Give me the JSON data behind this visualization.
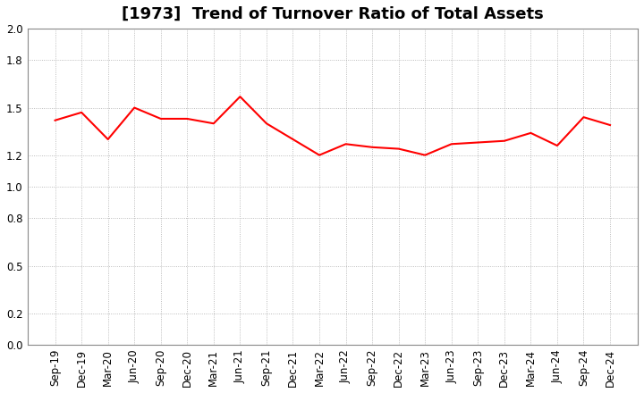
{
  "title": "[1973]  Trend of Turnover Ratio of Total Assets",
  "x_labels": [
    "Sep-19",
    "Dec-19",
    "Mar-20",
    "Jun-20",
    "Sep-20",
    "Dec-20",
    "Mar-21",
    "Jun-21",
    "Sep-21",
    "Dec-21",
    "Mar-22",
    "Jun-22",
    "Sep-22",
    "Dec-22",
    "Mar-23",
    "Jun-23",
    "Sep-23",
    "Dec-23",
    "Mar-24",
    "Jun-24",
    "Sep-24",
    "Dec-24"
  ],
  "y_values": [
    1.42,
    1.47,
    1.3,
    1.5,
    1.43,
    1.43,
    1.4,
    1.57,
    1.4,
    1.3,
    1.2,
    1.27,
    1.25,
    1.24,
    1.2,
    1.27,
    1.28,
    1.29,
    1.34,
    1.26,
    1.44,
    1.39
  ],
  "line_color": "#FF0000",
  "line_width": 1.5,
  "ylim": [
    0.0,
    2.0
  ],
  "yticks": [
    0.0,
    0.2,
    0.5,
    0.8,
    1.0,
    1.2,
    1.5,
    1.8,
    2.0
  ],
  "bg_color": "#FFFFFF",
  "plot_bg_color": "#FFFFFF",
  "grid_color": "#AAAAAA",
  "title_fontsize": 13,
  "tick_fontsize": 8.5
}
